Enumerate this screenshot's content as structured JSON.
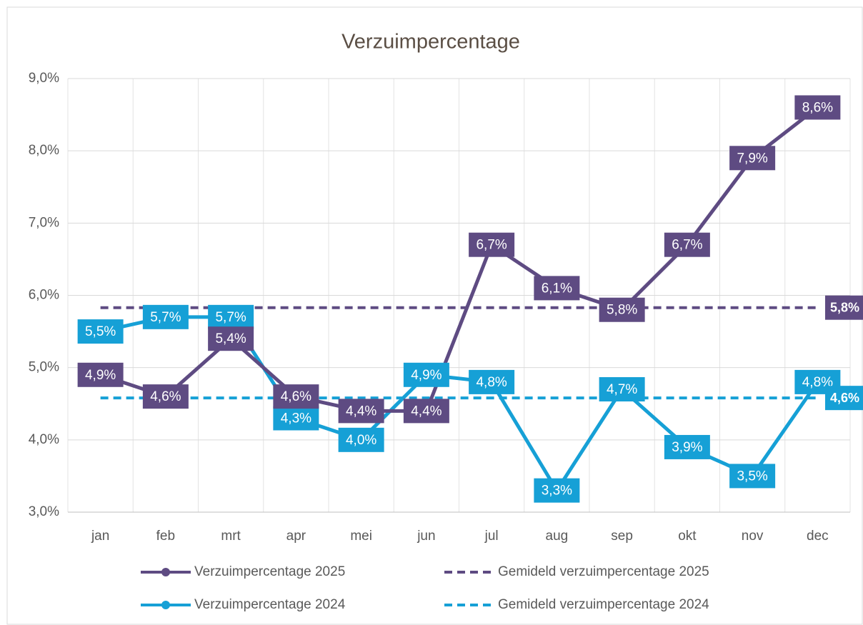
{
  "chart_data": {
    "type": "line",
    "title": "Verzuimpercentage",
    "categories": [
      "jan",
      "feb",
      "mrt",
      "apr",
      "mei",
      "jun",
      "jul",
      "aug",
      "sep",
      "okt",
      "nov",
      "dec"
    ],
    "series": [
      {
        "name": "Verzuimpercentage 2025",
        "color": "#5e4b82",
        "values": [
          4.9,
          4.6,
          5.4,
          4.6,
          4.4,
          4.4,
          6.7,
          6.1,
          5.8,
          6.7,
          7.9,
          8.6
        ],
        "value_labels": [
          "4,9%",
          "4,6%",
          "5,4%",
          "4,6%",
          "4,4%",
          "4,4%",
          "6,7%",
          "6,1%",
          "5,8%",
          "6,7%",
          "7,9%",
          "8,6%"
        ]
      },
      {
        "name": "Verzuimpercentage 2024",
        "color": "#16a0d6",
        "values": [
          5.5,
          5.7,
          5.7,
          4.3,
          4.0,
          4.9,
          4.8,
          3.3,
          4.7,
          3.9,
          3.5,
          4.8
        ],
        "value_labels": [
          "5,5%",
          "5,7%",
          "5,7%",
          "4,3%",
          "4,0%",
          "4,9%",
          "4,8%",
          "3,3%",
          "4,7%",
          "3,9%",
          "3,5%",
          "4,8%"
        ]
      }
    ],
    "averages": [
      {
        "name": "Gemideld verzuimpercentage 2025",
        "color": "#5e4b82",
        "value": 5.83,
        "value_label": "5,8%"
      },
      {
        "name": "Gemideld verzuimpercentage 2024",
        "color": "#16a0d6",
        "value": 4.58,
        "value_label": "4,6%"
      }
    ],
    "ylim": [
      3,
      9
    ],
    "yticks": [
      {
        "value": 3,
        "label": "3,0%"
      },
      {
        "value": 4,
        "label": "4,0%"
      },
      {
        "value": 5,
        "label": "5,0%"
      },
      {
        "value": 6,
        "label": "6,0%"
      },
      {
        "value": 7,
        "label": "7,0%"
      },
      {
        "value": 8,
        "label": "8,0%"
      },
      {
        "value": 9,
        "label": "9,0%"
      }
    ],
    "grid": true
  }
}
